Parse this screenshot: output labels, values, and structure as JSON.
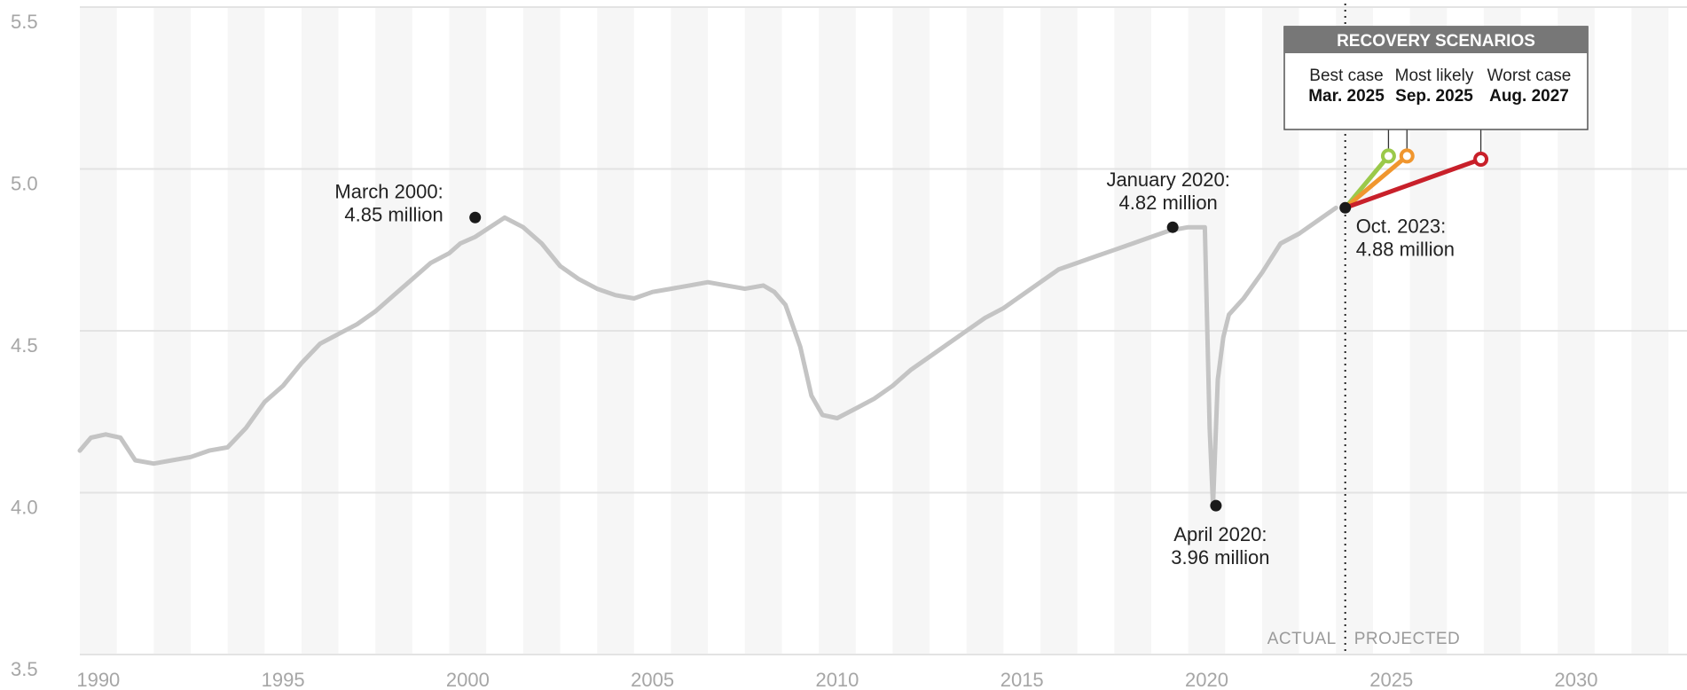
{
  "chart_data": {
    "type": "line",
    "title": "",
    "xlabel": "",
    "ylabel": "",
    "xlim": [
      1989.5,
      2033
    ],
    "ylim": [
      3.5,
      5.5
    ],
    "x_ticks": [
      1990,
      1995,
      2000,
      2005,
      2010,
      2015,
      2020,
      2025,
      2030
    ],
    "y_ticks": [
      3.5,
      4.0,
      4.5,
      5.0,
      5.5
    ],
    "x_tick_labels": [
      "1990",
      "1995",
      "2000",
      "2005",
      "2010",
      "2015",
      "2020",
      "2025",
      "2030"
    ],
    "y_tick_labels": [
      "3.5",
      "4.0",
      "4.5",
      "5.0",
      "5.5"
    ],
    "grid": true,
    "alternating_year_bands": true,
    "series": [
      {
        "color": "#c4c4c4",
        "x": [
          1989.5,
          1989.8,
          1990.2,
          1990.6,
          1991.0,
          1991.5,
          1992.0,
          1992.5,
          1993.0,
          1993.5,
          1994.0,
          1994.5,
          1995.0,
          1995.5,
          1996.0,
          1996.5,
          1997.0,
          1997.5,
          1998.0,
          1998.5,
          1999.0,
          1999.5,
          1999.8,
          2000.2,
          2000.6,
          2001.0,
          2001.5,
          2002.0,
          2002.5,
          2003.0,
          2003.5,
          2004.0,
          2004.5,
          2005.0,
          2005.5,
          2006.0,
          2006.5,
          2007.0,
          2007.5,
          2008.0,
          2008.3,
          2008.6,
          2009.0,
          2009.3,
          2009.6,
          2010.0,
          2010.5,
          2011.0,
          2011.5,
          2012.0,
          2012.5,
          2013.0,
          2013.5,
          2014.0,
          2014.5,
          2015.0,
          2015.5,
          2016.0,
          2016.5,
          2017.0,
          2017.5,
          2018.0,
          2018.5,
          2019.0,
          2019.5,
          2019.75,
          2019.95,
          2020.08,
          2020.17,
          2020.3,
          2020.45,
          2020.6,
          2021.0,
          2021.5,
          2022.0,
          2022.5,
          2023.0,
          2023.25,
          2023.5
        ],
        "y": [
          4.13,
          4.17,
          4.18,
          4.17,
          4.1,
          4.09,
          4.1,
          4.11,
          4.13,
          4.14,
          4.2,
          4.28,
          4.33,
          4.4,
          4.46,
          4.49,
          4.52,
          4.56,
          4.61,
          4.66,
          4.71,
          4.74,
          4.77,
          4.79,
          4.82,
          4.85,
          4.82,
          4.77,
          4.7,
          4.66,
          4.63,
          4.61,
          4.6,
          4.62,
          4.63,
          4.64,
          4.65,
          4.64,
          4.63,
          4.64,
          4.62,
          4.58,
          4.45,
          4.3,
          4.24,
          4.23,
          4.26,
          4.29,
          4.33,
          4.38,
          4.42,
          4.46,
          4.5,
          4.54,
          4.57,
          4.61,
          4.65,
          4.69,
          4.71,
          4.73,
          4.75,
          4.77,
          4.79,
          4.81,
          4.82,
          4.82,
          4.82,
          4.2,
          3.96,
          4.35,
          4.48,
          4.55,
          4.6,
          4.68,
          4.77,
          4.8,
          4.84,
          4.86,
          4.88
        ]
      },
      {
        "name": "Best case",
        "color": "#9bc94a",
        "x": [
          2023.75,
          2024.92
        ],
        "y": [
          4.88,
          5.04
        ]
      },
      {
        "name": "Most likely",
        "color": "#f0962e",
        "x": [
          2023.75,
          2025.42
        ],
        "y": [
          4.88,
          5.04
        ]
      },
      {
        "name": "Worst case",
        "color": "#c8202a",
        "x": [
          2023.75,
          2027.42
        ],
        "y": [
          4.88,
          5.03
        ]
      }
    ],
    "annotations": [
      {
        "x": 2000.2,
        "y": 4.85,
        "lines": [
          "March 2000:",
          "4.85 million"
        ],
        "anchor": "end"
      },
      {
        "x": 2019.08,
        "y": 4.82,
        "lines": [
          "January 2020:",
          "4.82 million"
        ],
        "anchor": "middle"
      },
      {
        "x": 2020.25,
        "y": 3.96,
        "lines": [
          "April 2020:",
          "3.96 million"
        ],
        "anchor": "middle"
      },
      {
        "x": 2023.75,
        "y": 4.88,
        "lines": [
          "Oct. 2023:",
          "4.88 million"
        ],
        "anchor": "start"
      }
    ],
    "divider": {
      "x": 2023.75,
      "left_label": "ACTUAL",
      "right_label": "PROJECTED"
    },
    "scenario_box": {
      "title": "RECOVERY SCENARIOS",
      "scenarios": [
        {
          "label": "Best case",
          "date": "Mar. 2025",
          "color": "#9bc94a"
        },
        {
          "label": "Most likely",
          "date": "Sep. 2025",
          "color": "#f0962e"
        },
        {
          "label": "Worst case",
          "date": "Aug. 2027",
          "color": "#c8202a"
        }
      ]
    }
  }
}
